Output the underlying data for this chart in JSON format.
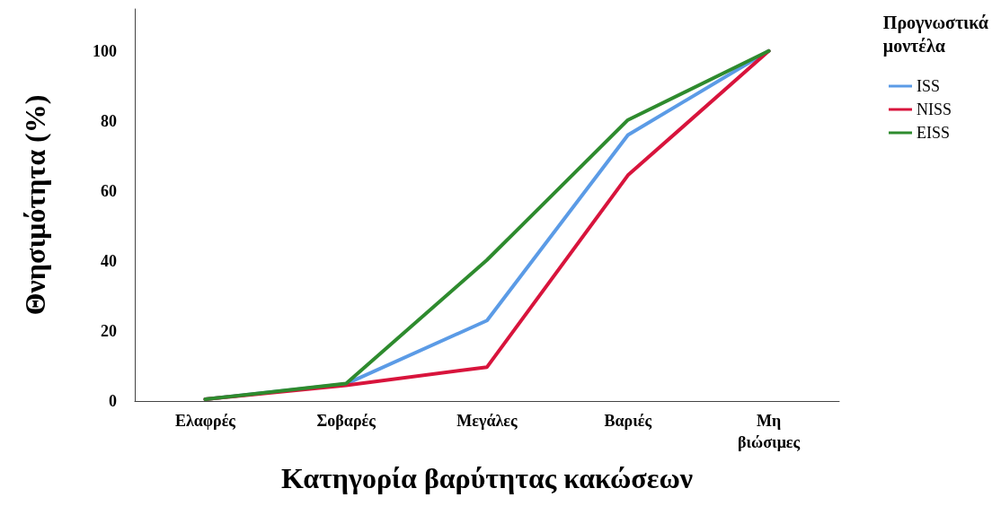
{
  "chart_data": {
    "type": "line",
    "xlabel": "Κατηγορία βαρύτητας κακώσεων",
    "ylabel": "Θνησιμότητα (%)",
    "legend_title": "Προγνωστικά μοντέλα",
    "categories": [
      "Ελαφρές",
      "Σοβαρές",
      "Μεγάλες",
      "Βαριές",
      "Μη βιώσιμες"
    ],
    "series": [
      {
        "name": "ISS",
        "color": "#5b9be6",
        "values": [
          0.5,
          4.9,
          23,
          76,
          100
        ]
      },
      {
        "name": "NISS",
        "color": "#d8143c",
        "values": [
          0.5,
          4.5,
          9.7,
          64.5,
          100
        ]
      },
      {
        "name": "EISS",
        "color": "#2e8b2e",
        "values": [
          0.5,
          5,
          40.3,
          80.3,
          100
        ]
      }
    ],
    "ylim": [
      0,
      112
    ],
    "yticks": [
      0,
      20,
      40,
      60,
      80,
      100
    ],
    "grid": false,
    "legend": "top right",
    "line_style": "solid"
  }
}
